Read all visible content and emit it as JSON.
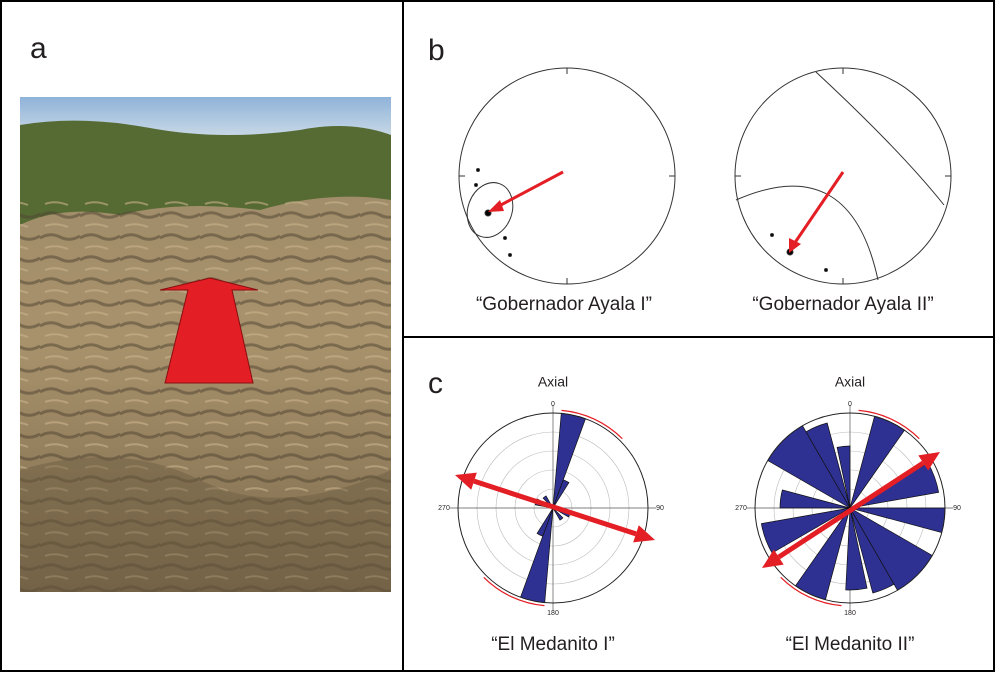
{
  "panels": {
    "a": {
      "label": "a"
    },
    "b": {
      "label": "b",
      "captions": [
        "“Gobernador Ayala I”",
        "“Gobernador Ayala II”"
      ]
    },
    "c": {
      "label": "c",
      "roses": [
        {
          "title": "Axial",
          "caption": "“El Medanito I”",
          "directions": [
            "0",
            "90",
            "180",
            "270"
          ]
        },
        {
          "title": "Axial",
          "caption": "“El Medanito II”",
          "directions": [
            "0",
            "90",
            "180",
            "270"
          ]
        }
      ]
    }
  }
}
